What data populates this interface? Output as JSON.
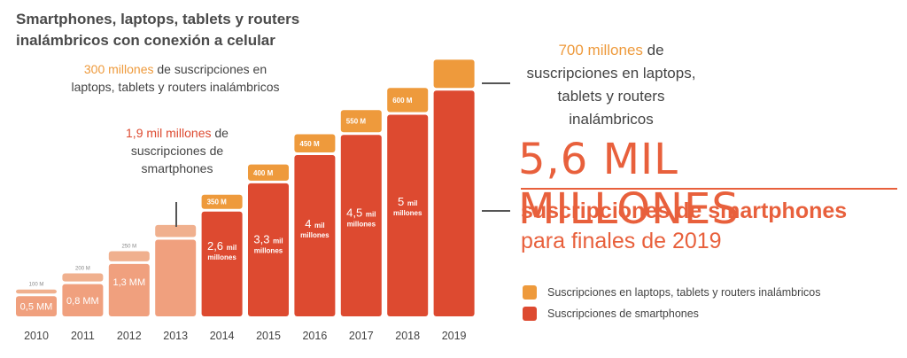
{
  "title": "Smartphones, laptops, tablets y routers inalámbricos con conexión a celular",
  "annotations": {
    "a300_highlight": "300 millones",
    "a300_rest": " de suscripciones en laptops, tablets y routers inalámbricos",
    "a19_highlight": "1,9 mil millones",
    "a19_rest": " de suscripciones de smartphones",
    "a700_highlight": "700 millones",
    "a700_rest": " de suscripciones en laptops, tablets y routers inalámbricos",
    "big_number": "5,6 MIL MILLONES",
    "sub1": "suscripciones de smartphones",
    "sub2": "para finales de 2019"
  },
  "legend": {
    "laptops": "Suscripciones en laptops, tablets y routers inalámbricos",
    "smartphones": "Suscripciones de smartphones"
  },
  "colors": {
    "laptops": "#ee9a3c",
    "smartphones": "#dd4a30",
    "early_top": "#f0b08e",
    "early_bottom": "#f0a07e"
  },
  "chart_data": {
    "type": "bar",
    "categories": [
      "2010",
      "2011",
      "2012",
      "2013",
      "2014",
      "2015",
      "2016",
      "2017",
      "2018",
      "2019"
    ],
    "series": [
      {
        "name": "Suscripciones de smartphones",
        "values": [
          0.5,
          0.8,
          1.3,
          1.9,
          2.6,
          3.3,
          4.0,
          4.5,
          5.0,
          5.6
        ],
        "labels": [
          "0,5 MM",
          "0,8 MM",
          "1,3 MM",
          "",
          "2,6 mil millones",
          "3,3 mil millones",
          "4 mil millones",
          "4,5 mil millones",
          "5 mil millones",
          ""
        ]
      },
      {
        "name": "Suscripciones en laptops, tablets y routers inalámbricos",
        "values": [
          0.1,
          0.2,
          0.25,
          0.3,
          0.35,
          0.4,
          0.45,
          0.55,
          0.6,
          0.7
        ],
        "labels": [
          "100 M",
          "200 M",
          "250 M",
          "",
          "350 M",
          "400 M",
          "450 M",
          "550 M",
          "600 M",
          ""
        ]
      }
    ],
    "xlabel": "",
    "ylabel": "",
    "ylim": [
      0,
      6.3
    ]
  }
}
